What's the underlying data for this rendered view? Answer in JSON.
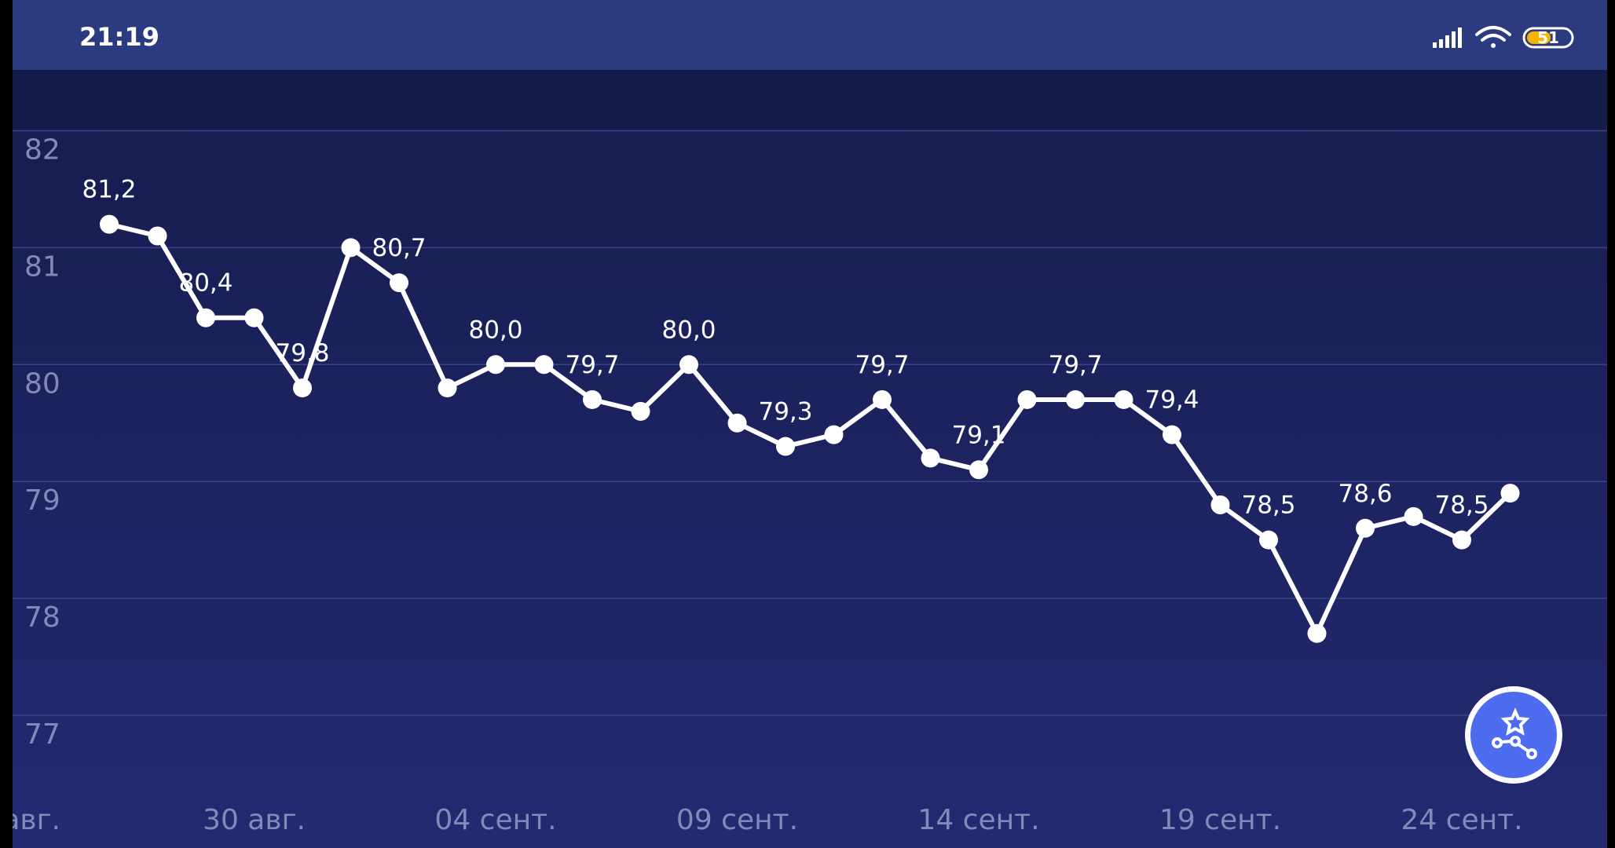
{
  "status_bar": {
    "time": "21:19",
    "battery": "51"
  },
  "chart_data": {
    "type": "line",
    "x_edge_label": "авг.",
    "categories": [
      null,
      null,
      null,
      "30 авг.",
      null,
      null,
      null,
      null,
      "04 сент.",
      null,
      null,
      null,
      null,
      "09 сент.",
      null,
      null,
      null,
      null,
      "14 сент.",
      null,
      null,
      null,
      null,
      "19 сент.",
      null,
      null,
      null,
      null,
      "24 сент.",
      null
    ],
    "series": [
      {
        "color": "#ffffff",
        "values": [
          81.2,
          81.1,
          80.4,
          80.4,
          79.8,
          81.0,
          80.7,
          79.8,
          80.0,
          80.0,
          79.7,
          79.6,
          80.0,
          79.5,
          79.3,
          79.4,
          79.7,
          79.2,
          79.1,
          79.7,
          79.7,
          79.7,
          79.4,
          78.8,
          78.5,
          77.7,
          78.6,
          78.7,
          78.5,
          78.9
        ],
        "value_labels": [
          "81,2",
          null,
          "80,4",
          null,
          "79,8",
          null,
          "80,7",
          null,
          "80,0",
          null,
          "79,7",
          null,
          "80,0",
          null,
          "79,3",
          null,
          "79,7",
          null,
          "79,1",
          null,
          "79,7",
          null,
          "79,4",
          null,
          "78,5",
          null,
          "78,6",
          null,
          "78,5",
          null
        ]
      }
    ],
    "ylim": [
      77,
      82
    ],
    "yticks": [
      77,
      78,
      79,
      80,
      81,
      82
    ],
    "grid": true
  }
}
